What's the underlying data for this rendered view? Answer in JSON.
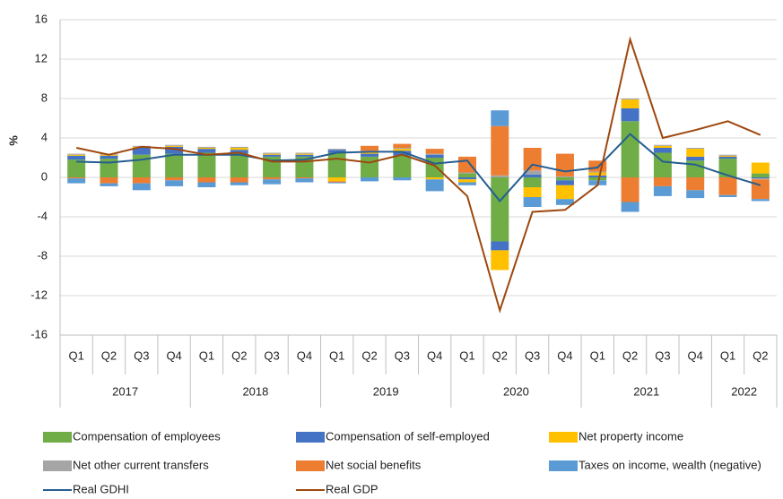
{
  "chart_data": {
    "type": "stacked-bar-line",
    "y_label": "%",
    "categories": [
      "Q1",
      "Q2",
      "Q3",
      "Q4",
      "Q1",
      "Q2",
      "Q3",
      "Q4",
      "Q1",
      "Q2",
      "Q3",
      "Q4",
      "Q1",
      "Q2",
      "Q3",
      "Q4",
      "Q1",
      "Q2",
      "Q3",
      "Q4",
      "Q1",
      "Q2"
    ],
    "years": [
      {
        "label": "2017",
        "count": 4
      },
      {
        "label": "2018",
        "count": 4
      },
      {
        "label": "2019",
        "count": 4
      },
      {
        "label": "2020",
        "count": 4
      },
      {
        "label": "2021",
        "count": 4
      },
      {
        "label": "2022",
        "count": 2
      }
    ],
    "series": [
      {
        "name": "Compensation of employees",
        "color": "#70ad47",
        "kind": "bar",
        "values": [
          1.8,
          1.9,
          2.3,
          2.4,
          2.5,
          2.4,
          2.1,
          2.1,
          2.5,
          2.1,
          2.2,
          2.0,
          0.4,
          -6.5,
          -1.0,
          -0.3,
          -0.3,
          5.7,
          2.5,
          1.7,
          1.9,
          0.4
        ]
      },
      {
        "name": "Compensation of self-employed",
        "color": "#4472c4",
        "kind": "bar",
        "values": [
          0.4,
          0.3,
          0.7,
          0.7,
          0.4,
          0.4,
          0.2,
          0.2,
          0.3,
          0.3,
          0.5,
          0.3,
          -0.2,
          -0.9,
          0.3,
          -0.5,
          0.2,
          1.3,
          0.5,
          0.4,
          0.2,
          -0.1
        ]
      },
      {
        "name": "Net property income",
        "color": "#ffc000",
        "kind": "bar",
        "values": [
          0.1,
          0.1,
          0.1,
          0.1,
          0.1,
          0.2,
          0.1,
          0.1,
          -0.4,
          0.2,
          0.2,
          -0.2,
          -0.3,
          -2.0,
          -1.0,
          -1.4,
          0.3,
          0.9,
          0.2,
          0.8,
          0.1,
          1.1
        ]
      },
      {
        "name": "Net other current transfers",
        "color": "#a5a5a5",
        "kind": "bar",
        "values": [
          0.1,
          0.1,
          0.1,
          0.1,
          0.1,
          0.1,
          0.1,
          0.1,
          0.1,
          0.1,
          0.1,
          0.1,
          0.1,
          0.2,
          0.4,
          0.1,
          0.1,
          0.1,
          0.1,
          0.1,
          0.1,
          -0.1
        ]
      },
      {
        "name": "Net social benefits",
        "color": "#ed7d31",
        "kind": "bar",
        "values": [
          -0.1,
          -0.6,
          -0.6,
          -0.3,
          -0.5,
          -0.5,
          -0.2,
          -0.1,
          -0.1,
          0.5,
          0.4,
          0.5,
          1.6,
          5.0,
          2.3,
          2.3,
          1.1,
          -2.5,
          -0.9,
          -1.3,
          -1.8,
          -2.0
        ]
      },
      {
        "name": "Taxes on income, wealth (negative)",
        "color": "#5b9bd5",
        "kind": "bar",
        "values": [
          -0.5,
          -0.3,
          -0.7,
          -0.6,
          -0.5,
          -0.3,
          -0.5,
          -0.4,
          -0.1,
          -0.4,
          -0.3,
          -1.2,
          -0.3,
          1.6,
          -1.0,
          -0.6,
          -0.5,
          -1.0,
          -1.0,
          -0.8,
          -0.2,
          -0.2
        ]
      },
      {
        "name": "Real GDHI",
        "color": "#255e91",
        "kind": "line",
        "values": [
          1.6,
          1.5,
          1.8,
          2.3,
          2.3,
          2.3,
          1.7,
          1.8,
          2.5,
          2.6,
          2.6,
          1.4,
          1.7,
          -2.4,
          1.3,
          0.6,
          1.0,
          4.4,
          1.6,
          1.3,
          0.2,
          -0.8
        ]
      },
      {
        "name": "Real GDP",
        "color": "#9e480e",
        "kind": "line",
        "values": [
          3.0,
          2.3,
          3.1,
          2.9,
          2.3,
          2.5,
          1.6,
          1.6,
          1.9,
          1.5,
          2.3,
          1.2,
          -1.9,
          -13.5,
          -3.5,
          -3.3,
          -0.8,
          14.0,
          4.0,
          4.8,
          5.7,
          4.3
        ]
      }
    ],
    "ylim": [
      -16,
      16
    ],
    "yticks": [
      -16,
      -12,
      -8,
      -4,
      0,
      4,
      8,
      12,
      16
    ],
    "grid": true
  }
}
